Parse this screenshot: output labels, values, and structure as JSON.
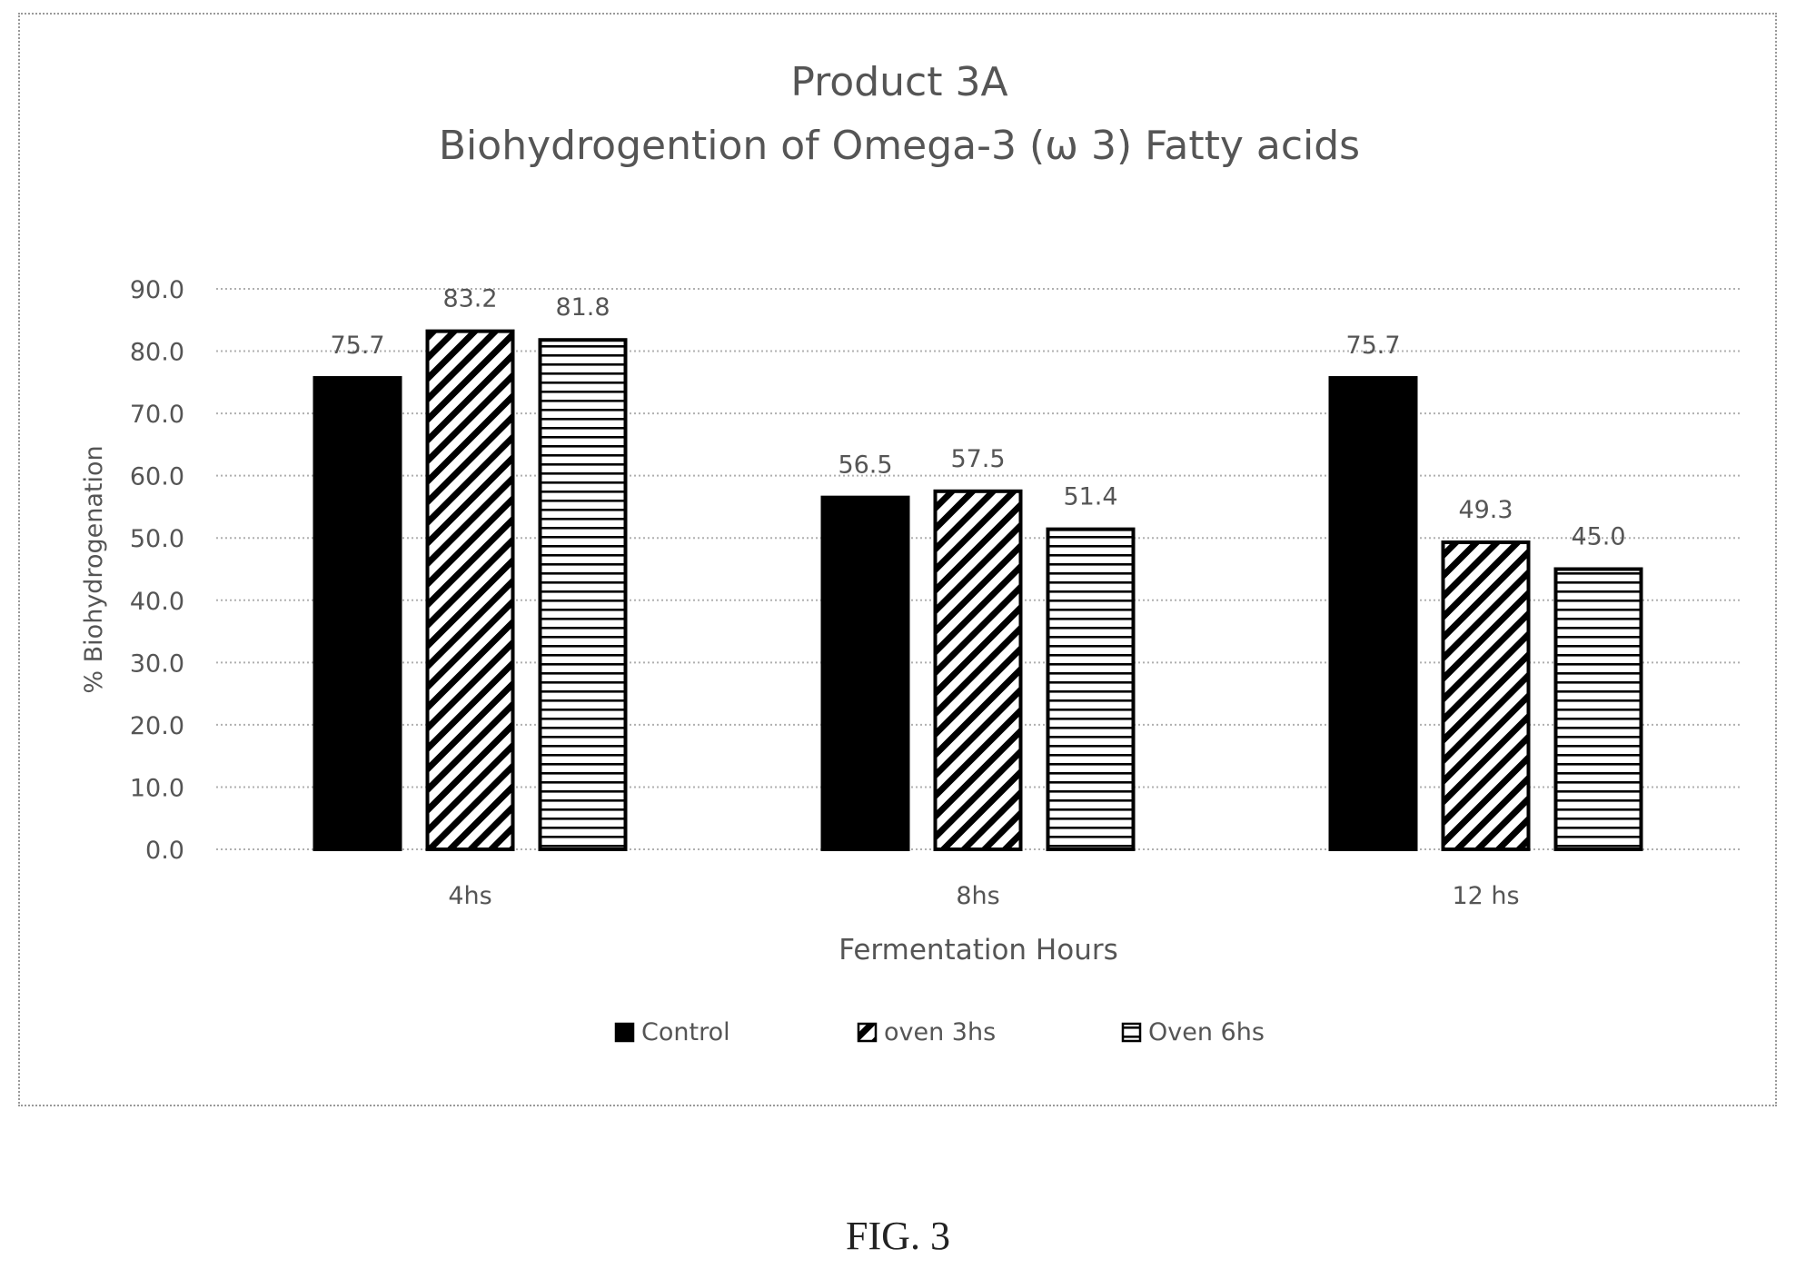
{
  "chart_data": {
    "type": "bar",
    "title": "Product 3A",
    "subtitle": "Biohydrogention of Omega-3 (ω 3) Fatty acids",
    "xlabel": "Fermentation Hours",
    "ylabel": "% Biohydrogenation",
    "categories": [
      "4hs",
      "8hs",
      "12 hs"
    ],
    "series": [
      {
        "name": "Control",
        "pattern": "solid",
        "values": [
          75.7,
          56.5,
          75.7
        ]
      },
      {
        "name": "oven 3hs",
        "pattern": "diagonal",
        "values": [
          83.2,
          57.5,
          49.3
        ]
      },
      {
        "name": "Oven 6hs",
        "pattern": "horizontal",
        "values": [
          81.8,
          51.4,
          45.0
        ]
      }
    ],
    "ylim": [
      0,
      90
    ],
    "yticks": [
      "0.0",
      "10.0",
      "20.0",
      "30.0",
      "40.0",
      "50.0",
      "60.0",
      "70.0",
      "80.0",
      "90.0"
    ],
    "grid": true,
    "legend_position": "bottom",
    "colors": {
      "bar": "#000000",
      "grid": "#b0b0b0",
      "text": "#555555"
    }
  },
  "caption": "FIG. 3"
}
